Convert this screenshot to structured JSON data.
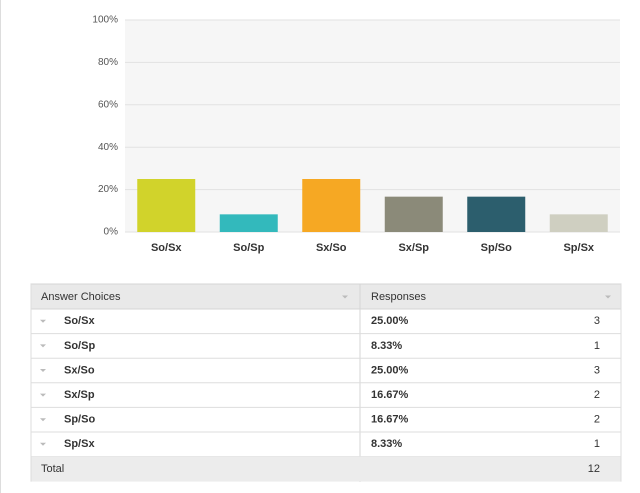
{
  "chart_data": {
    "type": "bar",
    "categories": [
      "So/Sx",
      "So/Sp",
      "Sx/So",
      "Sx/Sp",
      "Sp/So",
      "Sp/Sx"
    ],
    "values": [
      25,
      8.33,
      25,
      16.67,
      16.67,
      8.33
    ],
    "colors": [
      "#d1d32b",
      "#33b9bc",
      "#f6a823",
      "#8b8a79",
      "#2c5e6d",
      "#cfcfc1"
    ],
    "ylim": [
      0,
      100
    ],
    "yticks": [
      {
        "value": 0,
        "label": "0%"
      },
      {
        "value": 20,
        "label": "20%"
      },
      {
        "value": 40,
        "label": "40%"
      },
      {
        "value": 60,
        "label": "60%"
      },
      {
        "value": 80,
        "label": "80%"
      },
      {
        "value": 100,
        "label": "100%"
      }
    ],
    "grid": true
  },
  "table": {
    "header": [
      "Answer Choices",
      "Responses"
    ],
    "rows": [
      {
        "percent": "25.00%",
        "count": 3
      },
      {
        "percent": "8.33%",
        "count": 1
      },
      {
        "percent": "25.00%",
        "count": 3
      },
      {
        "percent": "16.67%",
        "count": 2
      },
      {
        "percent": "16.67%",
        "count": 2
      },
      {
        "percent": "8.33%",
        "count": 1
      }
    ],
    "total": {
      "label": "Total",
      "count": 12
    }
  }
}
